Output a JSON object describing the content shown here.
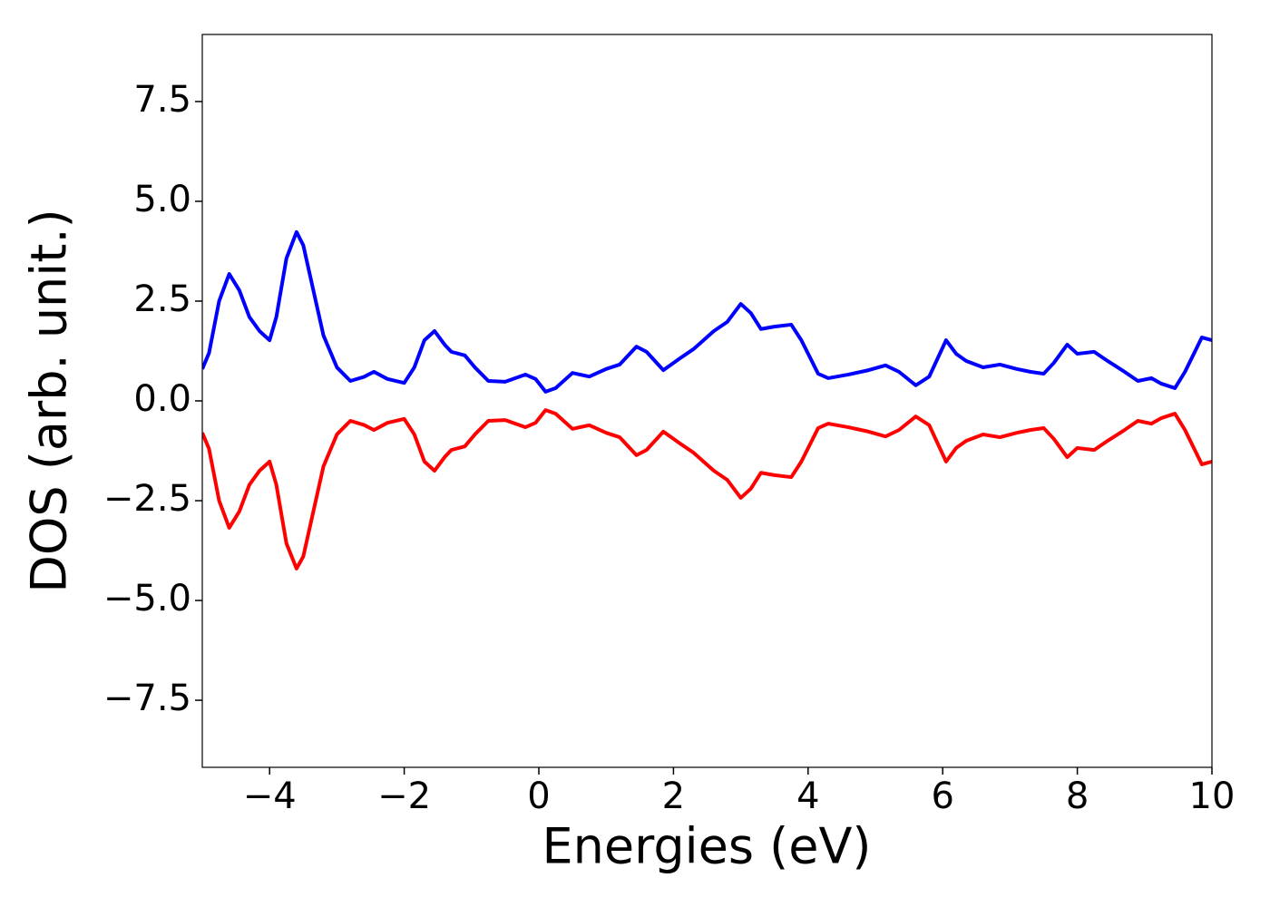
{
  "chart_data": {
    "type": "line",
    "x_label": "Energies (eV)",
    "y_label": "DOS (arb. unit.)",
    "xlim": [
      -5,
      10
    ],
    "ylim": [
      -9.18,
      9.18
    ],
    "xticks": [
      {
        "value": -4,
        "label": "−4"
      },
      {
        "value": -2,
        "label": "−2"
      },
      0,
      2,
      4,
      6,
      8,
      10
    ],
    "yticks": [
      {
        "value": -7.5,
        "label": "−7.5"
      },
      {
        "value": -5,
        "label": "−5.0"
      },
      {
        "value": -2.5,
        "label": "−2.5"
      },
      {
        "value": 0,
        "label": "0.0"
      },
      {
        "value": 2.5,
        "label": "2.5"
      },
      {
        "value": 5,
        "label": "5.0"
      },
      {
        "value": 7.5,
        "label": "7.5"
      }
    ],
    "x": [
      -5,
      -4.9,
      -4.75,
      -4.6,
      -4.45,
      -4.3,
      -4.15,
      -4.0,
      -3.9,
      -3.75,
      -3.6,
      -3.5,
      -3.35,
      -3.2,
      -3.0,
      -2.8,
      -2.6,
      -2.45,
      -2.25,
      -2.0,
      -1.85,
      -1.7,
      -1.55,
      -1.4,
      -1.3,
      -1.1,
      -0.95,
      -0.75,
      -0.5,
      -0.2,
      -0.05,
      0.1,
      0.25,
      0.5,
      0.75,
      1.0,
      1.2,
      1.45,
      1.6,
      1.85,
      2.1,
      2.3,
      2.6,
      2.8,
      3.0,
      3.15,
      3.3,
      3.5,
      3.75,
      3.9,
      4.15,
      4.3,
      4.6,
      4.9,
      5.15,
      5.35,
      5.6,
      5.8,
      6.05,
      6.2,
      6.35,
      6.6,
      6.85,
      7.1,
      7.3,
      7.5,
      7.65,
      7.85,
      8.0,
      8.25,
      8.45,
      8.7,
      8.9,
      9.1,
      9.25,
      9.45,
      9.6,
      9.85,
      10.0
    ],
    "series": [
      {
        "color": "#0000ff",
        "values": [
          0.8,
          1.2,
          2.5,
          3.18,
          2.77,
          2.1,
          1.75,
          1.52,
          2.1,
          3.57,
          4.23,
          3.9,
          2.77,
          1.64,
          0.84,
          0.5,
          0.6,
          0.73,
          0.55,
          0.45,
          0.84,
          1.52,
          1.75,
          1.41,
          1.23,
          1.14,
          0.84,
          0.5,
          0.48,
          0.66,
          0.55,
          0.23,
          0.32,
          0.7,
          0.61,
          0.8,
          0.91,
          1.36,
          1.23,
          0.77,
          1.07,
          1.3,
          1.75,
          1.98,
          2.43,
          2.2,
          1.8,
          1.86,
          1.91,
          1.52,
          0.68,
          0.57,
          0.66,
          0.77,
          0.89,
          0.73,
          0.39,
          0.61,
          1.52,
          1.18,
          1.0,
          0.84,
          0.91,
          0.8,
          0.73,
          0.68,
          0.95,
          1.41,
          1.18,
          1.23,
          1.0,
          0.73,
          0.5,
          0.57,
          0.43,
          0.32,
          0.73,
          1.59,
          1.52
        ]
      },
      {
        "color": "#ff0000",
        "values": [
          -0.8,
          -1.2,
          -2.5,
          -3.18,
          -2.77,
          -2.1,
          -1.75,
          -1.52,
          -2.1,
          -3.57,
          -4.2,
          -3.9,
          -2.77,
          -1.64,
          -0.84,
          -0.5,
          -0.6,
          -0.73,
          -0.55,
          -0.45,
          -0.84,
          -1.52,
          -1.75,
          -1.41,
          -1.23,
          -1.14,
          -0.84,
          -0.5,
          -0.48,
          -0.66,
          -0.55,
          -0.23,
          -0.32,
          -0.7,
          -0.61,
          -0.8,
          -0.91,
          -1.36,
          -1.23,
          -0.77,
          -1.07,
          -1.3,
          -1.75,
          -1.98,
          -2.43,
          -2.2,
          -1.8,
          -1.86,
          -1.91,
          -1.52,
          -0.68,
          -0.57,
          -0.66,
          -0.77,
          -0.89,
          -0.73,
          -0.39,
          -0.61,
          -1.52,
          -1.18,
          -1.0,
          -0.84,
          -0.91,
          -0.8,
          -0.73,
          -0.68,
          -0.95,
          -1.41,
          -1.18,
          -1.23,
          -1.0,
          -0.73,
          -0.5,
          -0.57,
          -0.43,
          -0.32,
          -0.73,
          -1.59,
          -1.52
        ]
      }
    ]
  }
}
